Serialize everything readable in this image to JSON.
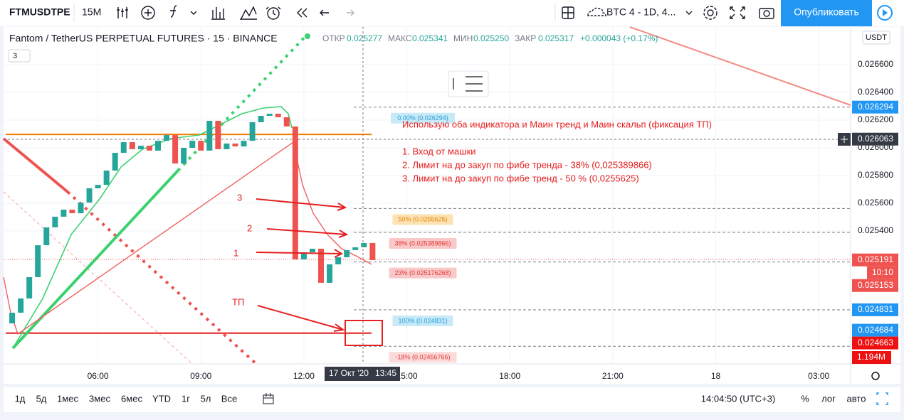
{
  "toolbar": {
    "symbol": "FTMUSDTPE",
    "interval": "15M",
    "compare": "BTC 4 - 1D, 4...",
    "publish": "Опубликовать"
  },
  "legend": {
    "title": "Fantom / TetherUS PERPETUAL FUTURES · 15 · BINANCE",
    "open_label": "ОТКР",
    "open": "0.025277",
    "high_label": "МАКС",
    "high": "0.025341",
    "low_label": "МИН",
    "low": "0.025250",
    "close_label": "ЗАКР",
    "close": "0.025317",
    "change": "+0.000043 (+0.17%)",
    "indicators": "3"
  },
  "currency": "USDT",
  "note": [
    "Использую оба индикатора и Маин тренд и Маин скальп (фиксация ТП)",
    "1. Вход от машки",
    "2. Лимит на до закуп по фибе тренда - 38% (0,025389866)",
    "3. Лимит на до закуп по фибе тренд - 50 % (0,0255625)"
  ],
  "arrow_labels": [
    "3",
    "2",
    "1",
    "ТП"
  ],
  "countdown": "10:10",
  "volume_label": "1.194M",
  "crosshair_time": "17 Окт '20",
  "crosshair_clock": "13:45",
  "range_buttons": [
    "1д",
    "5д",
    "1мес",
    "3мес",
    "6мес",
    "YTD",
    "1г",
    "5л",
    "Все"
  ],
  "status": {
    "clock": "14:04:50 (UTC+3)",
    "percent": "%",
    "log": "лог",
    "auto": "авто"
  },
  "chart_data": {
    "type": "candlestick",
    "x": [
      3.5,
      3.75,
      4,
      4.25,
      4.5,
      4.75,
      5,
      5.25,
      5.5,
      5.75,
      6,
      6.25,
      6.5,
      6.75,
      7,
      7.25,
      7.5,
      7.75,
      8,
      8.25,
      8.5,
      8.75,
      9,
      9.25,
      9.5,
      9.75,
      10,
      10.25,
      10.5,
      10.75,
      11,
      11.25,
      11.5,
      11.75,
      12,
      12.25,
      12.5,
      12.75,
      13,
      13.25,
      13.5,
      13.75,
      14
    ],
    "open": [
      0.024733,
      0.02481,
      0.024913,
      0.025067,
      0.025297,
      0.025426,
      0.025503,
      0.025554,
      0.025528,
      0.025605,
      0.025708,
      0.025733,
      0.025836,
      0.025964,
      0.026041,
      0.02599,
      0.026015,
      0.02598,
      0.026051,
      0.026092,
      0.025887,
      0.026,
      0.026051,
      0.02598,
      0.026195,
      0.02599,
      0.026031,
      0.02601,
      0.026051,
      0.026185,
      0.026231,
      0.026246,
      0.026221,
      0.026154,
      0.025195,
      0.025246,
      0.025272,
      0.025026,
      0.025159,
      0.02521,
      0.025262,
      0.025282,
      0.025313
    ],
    "close": [
      0.02481,
      0.024913,
      0.025067,
      0.025297,
      0.025426,
      0.025503,
      0.025554,
      0.025528,
      0.025605,
      0.025708,
      0.025733,
      0.025836,
      0.025964,
      0.026041,
      0.02599,
      0.026015,
      0.02598,
      0.026051,
      0.026092,
      0.025887,
      0.026,
      0.026051,
      0.02598,
      0.026195,
      0.02599,
      0.026031,
      0.02601,
      0.026051,
      0.026185,
      0.026231,
      0.026246,
      0.026221,
      0.026154,
      0.025195,
      0.025246,
      0.025272,
      0.025026,
      0.025159,
      0.02521,
      0.025262,
      0.025282,
      0.025313,
      0.02519
    ],
    "up_color": "#26a69a",
    "down_color": "#ef5350",
    "xlim": [
      3.25,
      27.93
    ],
    "ylim": [
      0.024441,
      0.026872
    ],
    "xticks": [
      {
        "value": 6,
        "label": "06:00"
      },
      {
        "value": 9,
        "label": "09:00"
      },
      {
        "value": 12,
        "label": "12:00"
      },
      {
        "value": 15,
        "label": "15:00"
      },
      {
        "value": 18,
        "label": "18:00"
      },
      {
        "value": 21,
        "label": "21:00"
      },
      {
        "value": 24,
        "label": "18"
      },
      {
        "value": 27,
        "label": "03:00"
      }
    ],
    "yticks": [
      {
        "value": 0.0254,
        "label": "0.025400"
      },
      {
        "value": 0.0256,
        "label": "0.025600"
      },
      {
        "value": 0.0258,
        "label": "0.025800"
      },
      {
        "value": 0.026,
        "label": "0.026000"
      },
      {
        "value": 0.0262,
        "label": "0.026200"
      },
      {
        "value": 0.0264,
        "label": "0.026400"
      },
      {
        "value": 0.0266,
        "label": "0.026600"
      }
    ],
    "fib_levels": [
      {
        "value": 0.026294,
        "label": "0.00% (0.026294)",
        "color": "#2a9fd8",
        "fill": "#c7e9f8"
      },
      {
        "value": 0.0255625,
        "label": "50% (0.0255625)",
        "color": "#e08a00",
        "fill": "#fde2b5"
      },
      {
        "value": 0.025389866,
        "label": "38% (0.025389866)",
        "color": "#e53935",
        "fill": "#f9c9c9"
      },
      {
        "value": 0.025176268,
        "label": "23% (0.025176268)",
        "color": "#e53935",
        "fill": "#f9c9c9"
      },
      {
        "value": 0.024831,
        "label": "100% (0.024831)",
        "color": "#2a9fd8",
        "fill": "#c7e9f8"
      },
      {
        "value": 0.02456766,
        "label": "-18% (0.02456766)",
        "color": "#e53935",
        "fill": "#fbdada"
      }
    ],
    "price_labels": [
      {
        "value": 0.026294,
        "label": "0.026294",
        "color": "#2196f3"
      },
      {
        "value": 0.026063,
        "label": "0.026063",
        "color": "#363a45"
      },
      {
        "value": 0.025191,
        "label": "0.025191",
        "color": "#ef5350"
      },
      {
        "value": 0.025153,
        "label": "0.025153",
        "color": "#ef5350"
      },
      {
        "value": 0.024831,
        "label": "0.024831",
        "color": "#2196f3"
      },
      {
        "value": 0.024684,
        "label": "0.024684",
        "color": "#2196f3"
      },
      {
        "value": 0.024663,
        "label": "0.024663",
        "color": "#ee1111"
      }
    ],
    "levels": [
      {
        "value": 0.026097,
        "color": "#f57c00"
      },
      {
        "value": 0.024663,
        "color": "#e52020"
      }
    ]
  }
}
